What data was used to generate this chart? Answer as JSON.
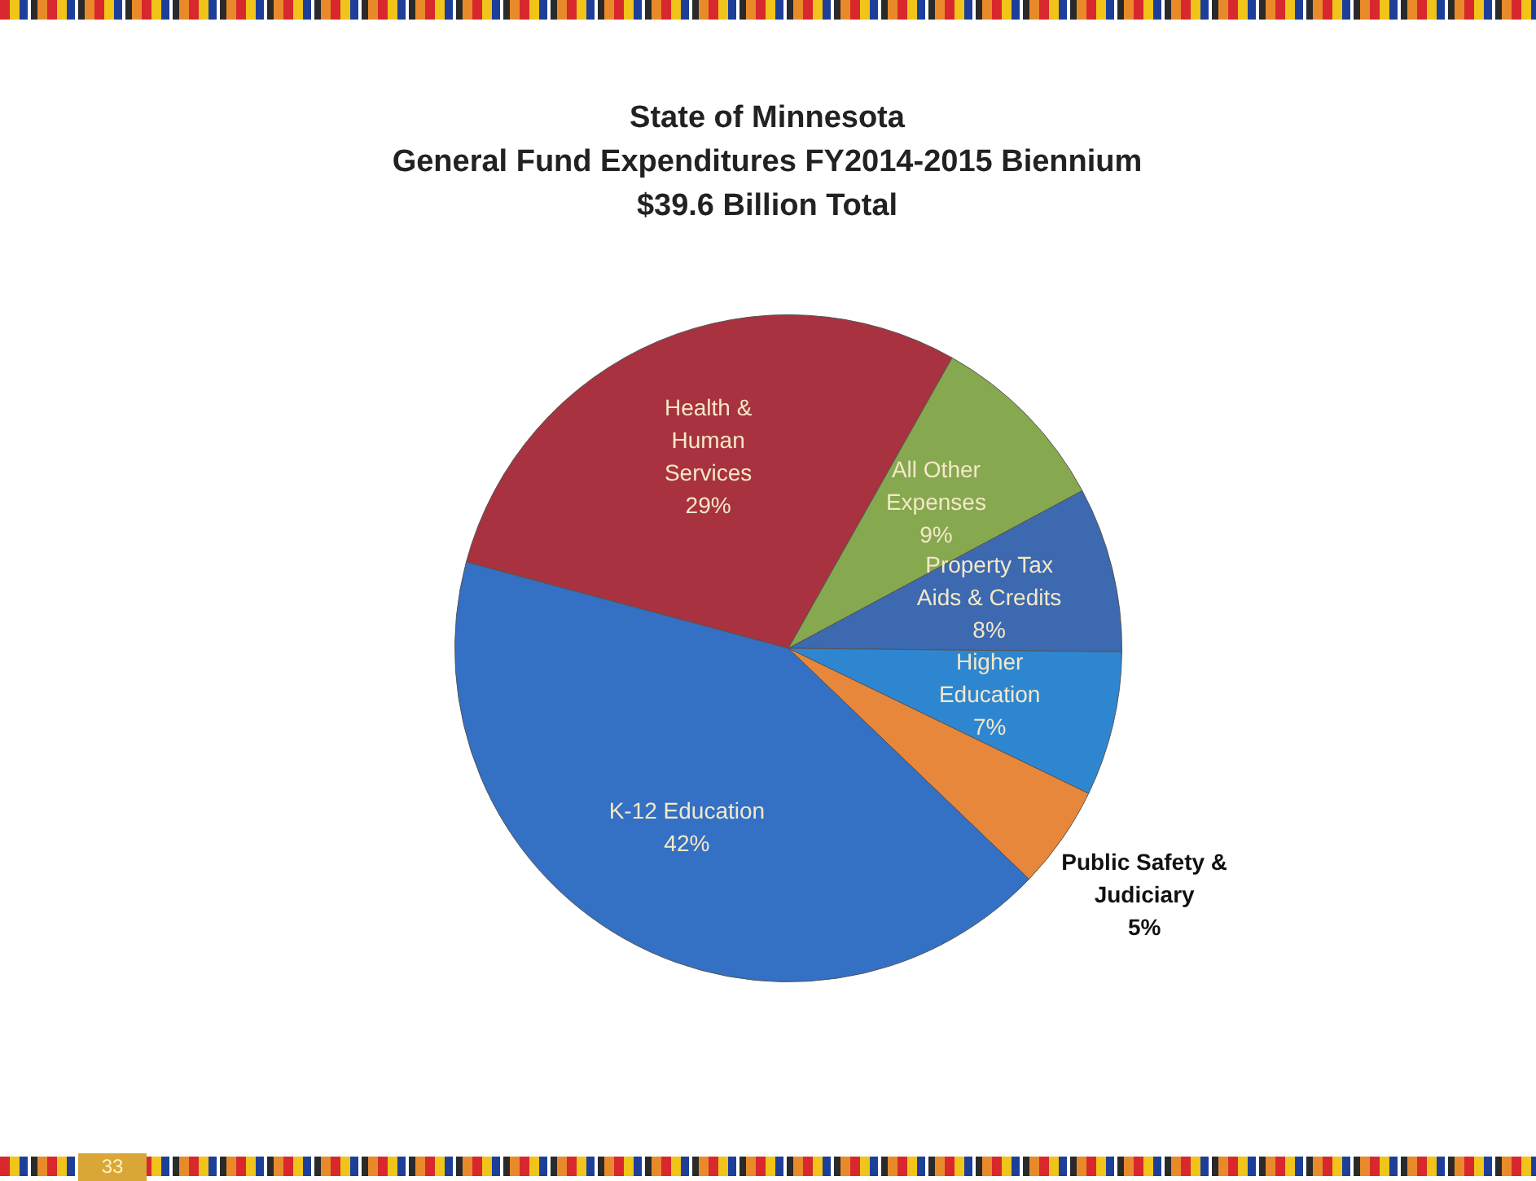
{
  "chart_data": {
    "type": "pie",
    "title": "State of Minnesota\nGeneral Fund Expenditures FY2014-2015 Biennium\n$39.6 Billion Total",
    "categories": [
      "Health & Human Services",
      "All Other Expenses",
      "Property Tax Aids & Credits",
      "Higher Education",
      "Public Safety & Judiciary",
      "K-12 Education"
    ],
    "values": [
      29,
      9,
      8,
      7,
      5,
      42
    ],
    "colors": [
      "#a8323f",
      "#86a84f",
      "#3c69b0",
      "#2f86d0",
      "#e7873b",
      "#3470c4"
    ],
    "value_labels": [
      "29%",
      "9%",
      "8%",
      "7%",
      "5%",
      "42%"
    ],
    "legend": false,
    "annotations": [
      "33"
    ]
  }
}
